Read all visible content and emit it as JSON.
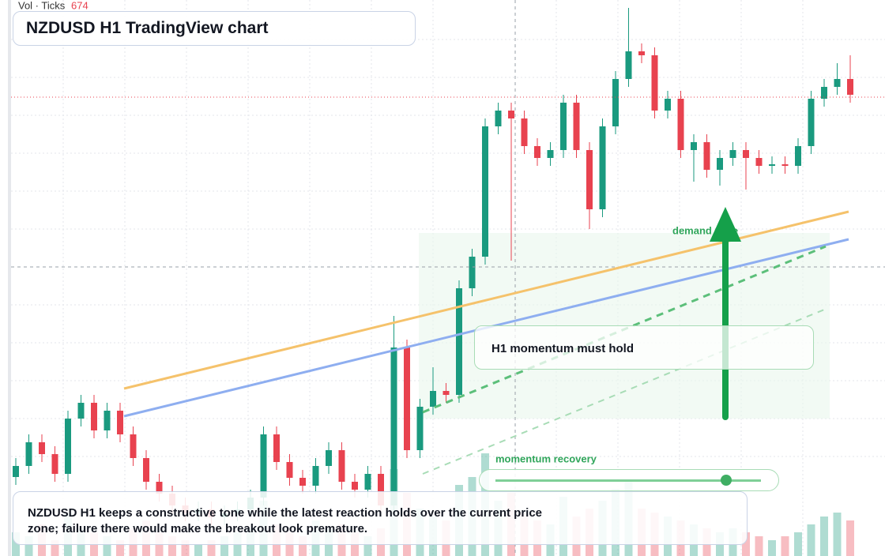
{
  "chart_data": {
    "type": "candlestick",
    "title": "NZDUSD H1 TradingView chart",
    "volume_label": "Vol · Ticks",
    "volume_value": "674",
    "zone_label": "demand zone",
    "callout": "H1 momentum must hold",
    "slider_label": "momentum recovery",
    "note": "NZDUSD H1 keeps a constructive tone while the latest reaction holds over the current price zone; failure there would make the breakout look premature.",
    "ylim": [
      0,
      704
    ],
    "up_color": "#1a9a7f",
    "down_color": "#e8424f",
    "open": [
      100,
      114,
      144,
      129,
      104,
      174,
      194,
      159,
      184,
      154,
      124,
      94,
      79,
      64,
      54,
      59,
      49,
      54,
      59,
      74,
      154,
      119,
      99,
      89,
      114,
      134,
      94,
      84,
      104,
      64,
      264,
      134,
      189,
      209,
      204,
      339,
      379,
      544,
      564,
      554,
      519,
      504,
      514,
      574,
      514,
      439,
      544,
      604,
      639,
      634,
      564,
      579,
      514,
      524,
      489,
      504,
      514,
      504,
      494,
      496,
      494,
      519,
      579,
      594,
      604
    ],
    "high": [
      124,
      154,
      154,
      139,
      184,
      204,
      204,
      194,
      194,
      164,
      134,
      104,
      89,
      74,
      69,
      69,
      64,
      69,
      84,
      164,
      164,
      129,
      109,
      124,
      144,
      144,
      104,
      114,
      114,
      304,
      274,
      199,
      239,
      219,
      349,
      389,
      554,
      574,
      574,
      564,
      529,
      524,
      584,
      584,
      524,
      554,
      614,
      694,
      649,
      644,
      589,
      589,
      534,
      534,
      514,
      524,
      524,
      514,
      506,
      506,
      529,
      589,
      604,
      624,
      634
    ],
    "low": [
      90,
      104,
      119,
      94,
      94,
      164,
      149,
      149,
      144,
      114,
      84,
      69,
      54,
      44,
      44,
      39,
      39,
      44,
      49,
      64,
      109,
      89,
      79,
      79,
      104,
      84,
      74,
      74,
      54,
      54,
      124,
      124,
      179,
      194,
      194,
      329,
      369,
      534,
      374,
      509,
      494,
      494,
      504,
      504,
      414,
      429,
      534,
      594,
      624,
      554,
      554,
      504,
      474,
      479,
      469,
      494,
      464,
      484,
      484,
      484,
      484,
      509,
      569,
      584,
      574
    ],
    "close": [
      114,
      144,
      129,
      104,
      174,
      194,
      159,
      184,
      154,
      124,
      94,
      79,
      64,
      54,
      59,
      49,
      54,
      59,
      74,
      154,
      119,
      99,
      89,
      114,
      134,
      94,
      84,
      104,
      64,
      264,
      134,
      189,
      209,
      204,
      339,
      379,
      544,
      564,
      554,
      519,
      504,
      514,
      574,
      514,
      439,
      544,
      604,
      639,
      634,
      564,
      579,
      514,
      524,
      489,
      504,
      514,
      504,
      494,
      496,
      494,
      519,
      579,
      594,
      604,
      584
    ],
    "volume": [
      30,
      25,
      40,
      20,
      55,
      35,
      30,
      25,
      20,
      35,
      45,
      30,
      25,
      20,
      15,
      20,
      25,
      30,
      35,
      70,
      40,
      30,
      25,
      45,
      35,
      40,
      30,
      25,
      35,
      110,
      80,
      60,
      50,
      45,
      90,
      100,
      130,
      70,
      80,
      55,
      45,
      40,
      75,
      50,
      60,
      70,
      85,
      95,
      60,
      55,
      50,
      45,
      40,
      35,
      30,
      35,
      30,
      25,
      20,
      25,
      30,
      40,
      50,
      55,
      45
    ]
  }
}
